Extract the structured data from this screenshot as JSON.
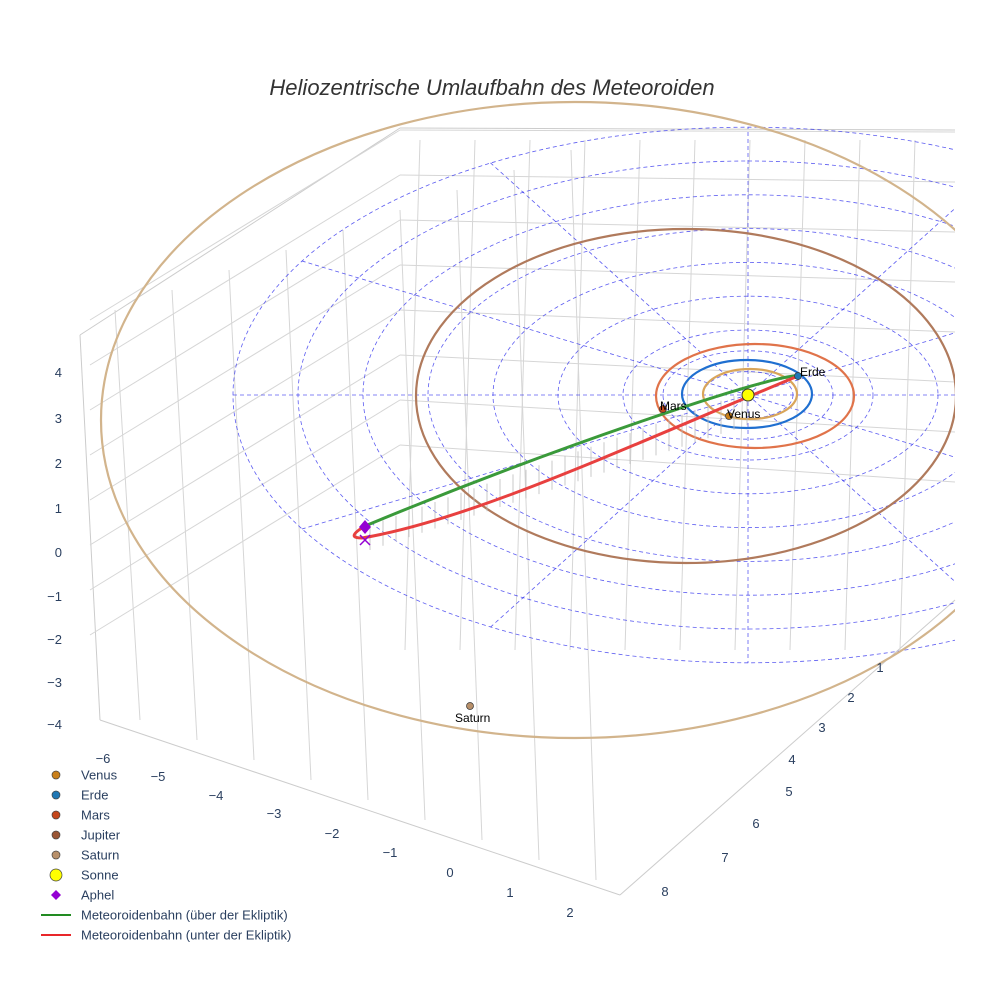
{
  "chart_data": {
    "type": "scatter3d",
    "title": "Heliozentrische Umlaufbahn des Meteoroiden",
    "axes": {
      "x": {
        "ticks": [
          "−6",
          "−5",
          "−4",
          "−3",
          "−2",
          "−1",
          "0",
          "1",
          "2"
        ]
      },
      "y": {
        "ticks": [
          "1",
          "2",
          "3",
          "4",
          "5",
          "6",
          "7",
          "8"
        ]
      },
      "z": {
        "ticks": [
          "4",
          "3",
          "2",
          "1",
          "0",
          "−1",
          "−2",
          "−3",
          "−4"
        ]
      }
    },
    "legend": {
      "placement": "bottom-left",
      "items": [
        {
          "name": "Venus",
          "symbol": "circle",
          "color": "#c97f1a"
        },
        {
          "name": "Erde",
          "symbol": "circle",
          "color": "#1f77b4"
        },
        {
          "name": "Mars",
          "symbol": "circle",
          "color": "#c4461b"
        },
        {
          "name": "Jupiter",
          "symbol": "circle",
          "color": "#9a5534"
        },
        {
          "name": "Saturn",
          "symbol": "circle",
          "color": "#b8906a"
        },
        {
          "name": "Sonne",
          "symbol": "circle",
          "color": "#ffff00"
        },
        {
          "name": "Aphel",
          "symbol": "diamond",
          "color": "#9400d3"
        },
        {
          "name": "Meteoroidenbahn (über der Ekliptik)",
          "symbol": "line",
          "color": "#228b22"
        },
        {
          "name": "Meteoroidenbahn (unter der Ekliptik)",
          "symbol": "line",
          "color": "#e8262a"
        }
      ]
    },
    "labels": {
      "venus": "Venus",
      "erde": "Erde",
      "mars": "Mars",
      "saturn": "Saturn"
    },
    "orbit_colors": {
      "venus": "#d9a55a",
      "erde": "#1f6fd0",
      "mars": "#e0734a",
      "jupiter": "#b07a5c",
      "saturn": "#d2b48c",
      "grid": "#3333ee"
    }
  }
}
